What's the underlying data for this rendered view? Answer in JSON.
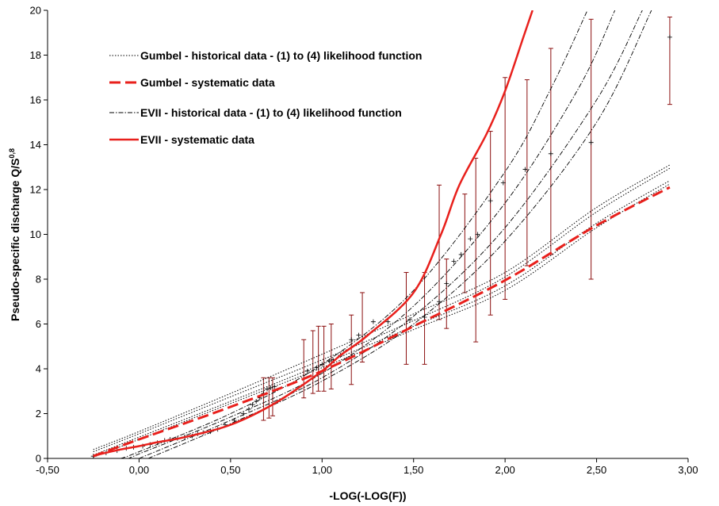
{
  "chart_data": {
    "type": "line",
    "xlabel": "-LOG(-LOG(F))",
    "ylabel_main": "Pseudo-specific discharge Q/S",
    "ylabel_exp": "0,8",
    "xlim": [
      -0.5,
      3.0
    ],
    "ylim": [
      0,
      20
    ],
    "x_ticks": [
      -0.5,
      0,
      0.5,
      1.0,
      1.5,
      2.0,
      2.5,
      3.0
    ],
    "x_tick_labels": [
      "-0,50",
      "0,00",
      "0,50",
      "1,00",
      "1,50",
      "2,00",
      "2,50",
      "3,00"
    ],
    "y_ticks": [
      0,
      2,
      4,
      6,
      8,
      10,
      12,
      14,
      16,
      18,
      20
    ],
    "y_tick_labels": [
      "0",
      "2",
      "4",
      "6",
      "8",
      "10",
      "12",
      "14",
      "16",
      "18",
      "20"
    ],
    "grid": false,
    "legend_position": "top-left",
    "colors": {
      "red": "#e8201c",
      "errorbar": "#8b0f0f",
      "black": "#000000"
    },
    "legend": [
      {
        "label": "Gumbel - historical data - (1) to (4) likelihood function",
        "style": "dotted"
      },
      {
        "label": "Gumbel - systematic data",
        "style": "red-dashed"
      },
      {
        "label": "EVII - historical data - (1) to (4) likelihood function",
        "style": "dash-dot"
      },
      {
        "label": "EVII - systematic data",
        "style": "red-solid"
      }
    ],
    "series": [
      {
        "name": "Gumbel - systematic data",
        "style": "red-dashed",
        "x": [
          -0.25,
          0.0,
          0.5,
          1.0,
          1.5,
          2.0,
          2.5,
          2.9
        ],
        "y": [
          0.1,
          0.85,
          2.3,
          3.9,
          5.9,
          7.95,
          10.4,
          12.1
        ]
      },
      {
        "name": "EVII - systematic data",
        "style": "red-solid",
        "x": [
          -0.25,
          -0.1,
          0.0,
          0.1,
          0.25,
          0.5,
          0.75,
          1.0,
          1.1,
          1.25,
          1.5,
          1.65,
          1.75,
          1.9,
          2.0,
          2.1,
          2.15
        ],
        "y": [
          0.12,
          0.4,
          0.55,
          0.72,
          0.95,
          1.5,
          2.5,
          3.9,
          4.6,
          5.5,
          7.4,
          10.0,
          12.2,
          14.5,
          16.4,
          18.8,
          20.0
        ]
      },
      {
        "name": "Gumbel - historical data - (1) to (4) likelihood function",
        "style": "dotted",
        "x": [
          -0.25,
          0.0,
          0.5,
          1.0,
          1.5,
          2.0,
          2.5,
          2.9
        ],
        "y": [
          0.4,
          1.2,
          2.9,
          4.65,
          6.45,
          8.3,
          11.2,
          13.1
        ]
      },
      {
        "style": "dotted",
        "x": [
          -0.25,
          0.0,
          0.5,
          1.0,
          1.5,
          2.0,
          2.5,
          2.9
        ],
        "y": [
          0.3,
          1.1,
          2.75,
          4.4,
          6.15,
          8.1,
          11.0,
          12.95
        ]
      },
      {
        "style": "dotted",
        "x": [
          -0.25,
          0.0,
          0.5,
          1.0,
          1.5,
          2.0,
          2.5,
          2.9
        ],
        "y": [
          0.15,
          0.95,
          2.55,
          4.2,
          5.9,
          7.7,
          10.5,
          12.4
        ]
      },
      {
        "style": "dotted",
        "x": [
          -0.25,
          0.0,
          0.5,
          1.0,
          1.5,
          2.0,
          2.5,
          2.9
        ],
        "y": [
          0.05,
          0.85,
          2.45,
          4.05,
          5.75,
          7.5,
          10.3,
          12.25
        ]
      },
      {
        "name": "EVII - historical data - (1) to (4) likelihood function",
        "style": "dash-dot",
        "x": [
          -0.1,
          0.0,
          0.5,
          1.0,
          1.5,
          2.0,
          2.25,
          2.45
        ],
        "y": [
          0.0,
          0.3,
          2.0,
          4.2,
          7.5,
          12.8,
          16.5,
          20.0
        ]
      },
      {
        "style": "dash-dot",
        "x": [
          -0.05,
          0.0,
          0.5,
          1.0,
          1.5,
          2.0,
          2.4,
          2.6
        ],
        "y": [
          0.0,
          0.2,
          1.85,
          3.8,
          6.8,
          11.4,
          16.5,
          20.0
        ]
      },
      {
        "style": "dash-dot",
        "x": [
          0.0,
          0.5,
          1.0,
          1.5,
          2.0,
          2.5,
          2.75
        ],
        "y": [
          0.0,
          1.7,
          3.6,
          6.35,
          10.3,
          16.0,
          20.0
        ]
      },
      {
        "style": "dash-dot",
        "x": [
          0.05,
          0.5,
          1.0,
          1.5,
          2.0,
          2.5,
          2.8
        ],
        "y": [
          0.0,
          1.55,
          3.45,
          6.0,
          9.7,
          15.0,
          20.0
        ]
      }
    ],
    "points": {
      "x": [
        -0.25,
        -0.18,
        -0.12,
        -0.07,
        -0.03,
        0.02,
        0.06,
        0.1,
        0.14,
        0.17,
        0.21,
        0.25,
        0.29,
        0.32,
        0.35,
        0.39,
        0.43,
        0.47,
        0.52,
        0.57,
        0.6,
        0.62,
        0.64,
        0.66,
        0.68,
        0.7,
        0.72,
        0.74,
        0.92,
        0.97,
        1.0,
        1.04,
        1.06,
        1.1,
        1.16,
        1.2,
        1.28,
        1.36,
        1.48,
        1.56,
        1.64,
        1.68,
        1.72,
        1.76,
        1.81,
        1.85,
        1.92,
        1.99,
        2.11,
        2.25,
        2.47,
        2.9
      ],
      "y": [
        0.1,
        0.25,
        0.35,
        0.45,
        0.5,
        0.55,
        0.62,
        0.7,
        0.8,
        0.85,
        0.9,
        0.95,
        1.0,
        1.1,
        1.15,
        1.2,
        1.3,
        1.5,
        1.7,
        2.0,
        2.2,
        2.4,
        2.55,
        2.7,
        2.9,
        3.1,
        3.15,
        3.2,
        3.9,
        4.05,
        4.2,
        4.35,
        4.4,
        4.6,
        5.3,
        5.5,
        6.1,
        6.1,
        6.2,
        6.3,
        7.0,
        7.8,
        8.8,
        9.1,
        9.8,
        10.0,
        11.5,
        12.3,
        12.9,
        13.6,
        14.1,
        18.8
      ]
    },
    "error_bars": [
      {
        "x": 0.68,
        "low": 1.7,
        "high": 3.6
      },
      {
        "x": 0.71,
        "low": 1.8,
        "high": 3.6
      },
      {
        "x": 0.73,
        "low": 1.9,
        "high": 3.6
      },
      {
        "x": 0.9,
        "low": 2.7,
        "high": 5.3
      },
      {
        "x": 0.95,
        "low": 2.9,
        "high": 5.7
      },
      {
        "x": 0.98,
        "low": 3.0,
        "high": 5.9
      },
      {
        "x": 1.01,
        "low": 3.0,
        "high": 5.9
      },
      {
        "x": 1.05,
        "low": 3.1,
        "high": 6.0
      },
      {
        "x": 1.16,
        "low": 3.3,
        "high": 6.4
      },
      {
        "x": 1.22,
        "low": 4.3,
        "high": 7.4
      },
      {
        "x": 1.46,
        "low": 4.2,
        "high": 8.3
      },
      {
        "x": 1.56,
        "low": 4.2,
        "high": 8.3
      },
      {
        "x": 1.64,
        "low": 6.2,
        "high": 12.2
      },
      {
        "x": 1.68,
        "low": 5.8,
        "high": 8.9
      },
      {
        "x": 1.78,
        "low": 7.4,
        "high": 11.8
      },
      {
        "x": 1.84,
        "low": 5.2,
        "high": 13.4
      },
      {
        "x": 1.92,
        "low": 6.4,
        "high": 14.6
      },
      {
        "x": 2.0,
        "low": 7.1,
        "high": 17.0
      },
      {
        "x": 2.12,
        "low": 8.6,
        "high": 16.9
      },
      {
        "x": 2.25,
        "low": 9.1,
        "high": 18.3
      },
      {
        "x": 2.47,
        "low": 8.0,
        "high": 19.6
      },
      {
        "x": 2.9,
        "low": 15.8,
        "high": 19.7
      }
    ]
  }
}
